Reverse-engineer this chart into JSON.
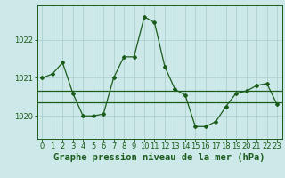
{
  "title": "Graphe pression niveau de la mer (hPa)",
  "bg_color": "#cce8e8",
  "line_color": "#1a5c1a",
  "grid_color": "#aacccc",
  "x_ticks": [
    0,
    1,
    2,
    3,
    4,
    5,
    6,
    7,
    8,
    9,
    10,
    11,
    12,
    13,
    14,
    15,
    16,
    17,
    18,
    19,
    20,
    21,
    22,
    23
  ],
  "y_ticks": [
    1020,
    1021,
    1022
  ],
  "ylim": [
    1019.4,
    1022.9
  ],
  "xlim": [
    -0.5,
    23.5
  ],
  "pressure_data": [
    [
      0,
      1021.0
    ],
    [
      1,
      1021.1
    ],
    [
      2,
      1021.4
    ],
    [
      3,
      1020.6
    ],
    [
      4,
      1020.0
    ],
    [
      5,
      1020.0
    ],
    [
      6,
      1020.05
    ],
    [
      7,
      1021.0
    ],
    [
      8,
      1021.55
    ],
    [
      9,
      1021.55
    ],
    [
      10,
      1022.6
    ],
    [
      11,
      1022.45
    ],
    [
      12,
      1021.3
    ],
    [
      13,
      1020.7
    ],
    [
      14,
      1020.55
    ],
    [
      15,
      1019.72
    ],
    [
      16,
      1019.72
    ],
    [
      17,
      1019.85
    ],
    [
      18,
      1020.25
    ],
    [
      19,
      1020.6
    ],
    [
      20,
      1020.65
    ],
    [
      21,
      1020.8
    ],
    [
      22,
      1020.85
    ],
    [
      23,
      1020.3
    ]
  ],
  "hline1": 1020.65,
  "hline2": 1020.35,
  "title_fontsize": 7.5,
  "tick_fontsize": 6.0,
  "marker_size": 2.0,
  "line_width": 0.9
}
